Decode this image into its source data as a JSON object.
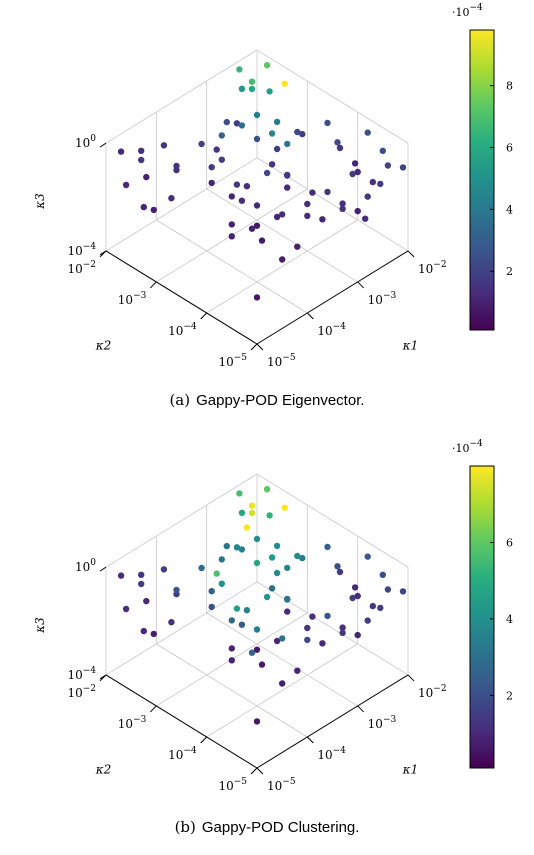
{
  "chart_data": [
    {
      "type": "scatter",
      "title": "",
      "caption_letter": "(a)",
      "caption_text": "Gappy-POD Eigenvector.",
      "xlabel": "κ1",
      "ylabel": "κ2",
      "zlabel": "κ3",
      "x_axis_ticks": [
        {
          "base": "10",
          "exp": "−5"
        },
        {
          "base": "10",
          "exp": "−4"
        },
        {
          "base": "10",
          "exp": "−3"
        },
        {
          "base": "10",
          "exp": "−2"
        }
      ],
      "y_axis_ticks": [
        {
          "base": "10",
          "exp": "−5"
        },
        {
          "base": "10",
          "exp": "−4"
        },
        {
          "base": "10",
          "exp": "−3"
        },
        {
          "base": "10",
          "exp": "−2"
        }
      ],
      "z_axis_ticks": [
        {
          "base": "10",
          "exp": "−4"
        },
        {
          "base": "10",
          "exp": "0"
        }
      ],
      "log_scale": true,
      "grid": true,
      "colormap": "viridis",
      "colorbar": {
        "multiplier": {
          "base": "·10",
          "exp": "−4"
        },
        "range": [
          0.1,
          9.8
        ],
        "ticks": [
          "2",
          "4",
          "6",
          "8"
        ]
      },
      "points": [
        [
          -2.3,
          -4.9,
          -0.6,
          2.1
        ],
        [
          -2.2,
          -4.7,
          -0.4,
          2.4
        ],
        [
          -2.5,
          -4.8,
          -1.1,
          1.5
        ],
        [
          -2.7,
          -4.6,
          -0.8,
          1.8
        ],
        [
          -2.4,
          -4.4,
          -1.3,
          1.2
        ],
        [
          -2.9,
          -4.9,
          -1.6,
          1.0
        ],
        [
          -2.1,
          -4.3,
          -0.3,
          2.6
        ],
        [
          -2.6,
          -4.2,
          -0.2,
          2.3
        ],
        [
          -2.8,
          -4.5,
          -1.9,
          1.3
        ],
        [
          -2.05,
          -4.95,
          -0.9,
          2.0
        ],
        [
          -2.35,
          -4.55,
          -2.1,
          1.7
        ],
        [
          -2.45,
          -4.1,
          -0.7,
          1.6
        ],
        [
          -2.2,
          -4.15,
          -1.5,
          1.1
        ],
        [
          -2.15,
          -4.6,
          -1.8,
          1.9
        ],
        [
          -2.6,
          -4.75,
          -2.4,
          1.4
        ],
        [
          -2.1,
          -2.3,
          -0.1,
          7.3
        ],
        [
          -2.05,
          -2.6,
          -0.5,
          9.8
        ],
        [
          -2.3,
          -2.2,
          -0.6,
          6.8
        ],
        [
          -2.2,
          -2.1,
          -1.1,
          5.9
        ],
        [
          -2.15,
          -2.4,
          -0.9,
          5.5
        ],
        [
          -2.4,
          -2.05,
          -0.2,
          6.5
        ],
        [
          -2.6,
          -2.3,
          -0.4,
          5.2
        ],
        [
          -2.5,
          -2.8,
          -1.6,
          4.6
        ],
        [
          -2.7,
          -2.7,
          -0.8,
          4.3
        ],
        [
          -2.8,
          -2.5,
          -1.3,
          3.6
        ],
        [
          -2.3,
          -2.9,
          -2.1,
          3.9
        ],
        [
          -2.9,
          -2.2,
          -1.9,
          3.1
        ],
        [
          -2.35,
          -2.75,
          -1.4,
          4.1
        ],
        [
          -3.6,
          -3.4,
          -1.6,
          1.3
        ],
        [
          -3.3,
          -3.6,
          -0.9,
          1.5
        ],
        [
          -3.9,
          -3.2,
          -0.5,
          1.9
        ],
        [
          -3.2,
          -3.8,
          -1.2,
          1.1
        ],
        [
          -3.5,
          -3.1,
          -2.0,
          1.6
        ],
        [
          -4.0,
          -3.5,
          -1.4,
          1.2
        ],
        [
          -3.4,
          -3.9,
          -2.3,
          1.4
        ],
        [
          -3.7,
          -2.9,
          -0.7,
          1.7
        ],
        [
          -3.1,
          -3.3,
          -1.8,
          2.2
        ],
        [
          -3.8,
          -3.7,
          -2.6,
          1.0
        ],
        [
          -3.0,
          -3.0,
          -1.0,
          2.5
        ],
        [
          -3.25,
          -2.85,
          -0.3,
          1.8
        ],
        [
          -4.1,
          -3.8,
          -1.1,
          1.3
        ],
        [
          -3.55,
          -3.55,
          -2.2,
          1.2
        ],
        [
          -4.6,
          -2.3,
          -0.4,
          1.4
        ],
        [
          -4.8,
          -2.6,
          -0.8,
          1.0
        ],
        [
          -4.4,
          -2.1,
          -1.2,
          1.6
        ],
        [
          -4.9,
          -2.2,
          -0.2,
          1.2
        ],
        [
          -4.5,
          -2.8,
          -1.7,
          1.3
        ],
        [
          -4.7,
          -2.45,
          -2.2,
          1.1
        ],
        [
          -4.3,
          -2.7,
          -1.0,
          1.5
        ],
        [
          -4.95,
          -2.9,
          -1.5,
          0.9
        ],
        [
          -4.2,
          -2.35,
          -0.6,
          1.7
        ],
        [
          -4.65,
          -2.05,
          -1.9,
          1.2
        ],
        [
          -4.5,
          -4.6,
          -1.2,
          0.8
        ],
        [
          -4.8,
          -4.3,
          -0.6,
          1.0
        ],
        [
          -4.3,
          -4.8,
          -1.9,
          0.9
        ],
        [
          -4.9,
          -4.9,
          -2.5,
          0.7
        ],
        [
          -4.1,
          -4.5,
          -0.9,
          1.1
        ],
        [
          -4.6,
          -4.1,
          -1.5,
          1.0
        ],
        [
          -4.7,
          -4.7,
          -0.3,
          0.8
        ],
        [
          -3.4,
          -4.5,
          -0.8,
          1.3
        ],
        [
          -3.1,
          -4.8,
          -1.4,
          1.5
        ],
        [
          -3.7,
          -4.3,
          -0.5,
          1.2
        ],
        [
          -3.9,
          -4.7,
          -2.0,
          1.0
        ],
        [
          -3.2,
          -4.2,
          -1.8,
          1.4
        ],
        [
          -3.6,
          -4.9,
          -1.1,
          1.1
        ],
        [
          -2.6,
          -3.5,
          -0.7,
          1.9
        ],
        [
          -2.4,
          -3.2,
          -1.2,
          2.2
        ],
        [
          -2.8,
          -3.4,
          -2.1,
          1.7
        ],
        [
          -2.3,
          -3.7,
          -0.4,
          2.4
        ],
        [
          -2.7,
          -3.1,
          -1.6,
          1.8
        ],
        [
          -2.5,
          -3.9,
          -2.5,
          1.6
        ],
        [
          -3.5,
          -2.4,
          -1.3,
          2.0
        ],
        [
          -3.2,
          -2.6,
          -0.6,
          2.3
        ],
        [
          -3.8,
          -2.2,
          -2.0,
          1.5
        ],
        [
          -3.6,
          -2.7,
          -1.7,
          1.8
        ],
        [
          -4.2,
          -3.3,
          -0.9,
          1.1
        ],
        [
          -3.0,
          -4.0,
          -2.7,
          1.3
        ]
      ]
    },
    {
      "type": "scatter",
      "title": "",
      "caption_letter": "(b)",
      "caption_text": "Gappy-POD Clustering.",
      "xlabel": "κ1",
      "ylabel": "κ2",
      "zlabel": "κ3",
      "x_axis_ticks": [
        {
          "base": "10",
          "exp": "−5"
        },
        {
          "base": "10",
          "exp": "−4"
        },
        {
          "base": "10",
          "exp": "−3"
        },
        {
          "base": "10",
          "exp": "−2"
        }
      ],
      "y_axis_ticks": [
        {
          "base": "10",
          "exp": "−5"
        },
        {
          "base": "10",
          "exp": "−4"
        },
        {
          "base": "10",
          "exp": "−3"
        },
        {
          "base": "10",
          "exp": "−2"
        }
      ],
      "z_axis_ticks": [
        {
          "base": "10",
          "exp": "−4"
        },
        {
          "base": "10",
          "exp": "0"
        }
      ],
      "log_scale": true,
      "grid": true,
      "colormap": "viridis",
      "colorbar": {
        "multiplier": {
          "base": "·10",
          "exp": "−4"
        },
        "range": [
          0.1,
          8.0
        ],
        "ticks": [
          "2",
          "4",
          "6"
        ]
      },
      "points": [
        [
          -2.3,
          -4.9,
          -0.6,
          1.8
        ],
        [
          -2.2,
          -4.7,
          -0.4,
          2.0
        ],
        [
          -2.5,
          -4.8,
          -1.1,
          1.3
        ],
        [
          -2.7,
          -4.6,
          -0.8,
          1.6
        ],
        [
          -2.4,
          -4.4,
          -1.3,
          1.1
        ],
        [
          -2.9,
          -4.9,
          -1.6,
          0.9
        ],
        [
          -2.1,
          -4.3,
          -0.3,
          2.3
        ],
        [
          -2.6,
          -4.2,
          -0.2,
          2.0
        ],
        [
          -2.8,
          -4.5,
          -1.9,
          1.2
        ],
        [
          -2.05,
          -4.95,
          -0.9,
          1.7
        ],
        [
          -2.35,
          -4.55,
          -2.1,
          1.5
        ],
        [
          -2.45,
          -4.1,
          -0.7,
          1.4
        ],
        [
          -2.2,
          -4.15,
          -1.5,
          1.0
        ],
        [
          -2.15,
          -4.6,
          -1.8,
          1.6
        ],
        [
          -2.1,
          -2.3,
          -0.1,
          6.0
        ],
        [
          -2.05,
          -2.6,
          -0.5,
          8.0
        ],
        [
          -2.3,
          -2.2,
          -0.6,
          7.8
        ],
        [
          -2.2,
          -2.1,
          -1.1,
          7.5
        ],
        [
          -2.15,
          -2.4,
          -0.9,
          5.2
        ],
        [
          -2.4,
          -2.05,
          -0.2,
          5.6
        ],
        [
          -2.6,
          -2.3,
          -0.4,
          4.8
        ],
        [
          -2.5,
          -2.8,
          -1.6,
          4.4
        ],
        [
          -2.7,
          -2.7,
          -0.8,
          4.0
        ],
        [
          -2.8,
          -2.5,
          -1.3,
          3.5
        ],
        [
          -2.3,
          -2.9,
          -2.1,
          3.7
        ],
        [
          -2.9,
          -2.2,
          -1.9,
          3.2
        ],
        [
          -2.35,
          -2.75,
          -1.4,
          3.9
        ],
        [
          -2.55,
          -2.35,
          -0.95,
          7.9
        ],
        [
          -3.6,
          -3.4,
          -1.6,
          3.6
        ],
        [
          -3.3,
          -3.6,
          -0.9,
          3.0
        ],
        [
          -3.9,
          -3.2,
          -0.5,
          4.1
        ],
        [
          -3.2,
          -3.8,
          -1.2,
          3.3
        ],
        [
          -3.5,
          -3.1,
          -2.0,
          4.5
        ],
        [
          -4.0,
          -3.5,
          -1.4,
          2.8
        ],
        [
          -3.4,
          -3.9,
          -2.3,
          3.1
        ],
        [
          -3.7,
          -2.9,
          -0.7,
          5.7
        ],
        [
          -3.1,
          -3.3,
          -1.8,
          4.2
        ],
        [
          -3.8,
          -3.7,
          -2.6,
          2.6
        ],
        [
          -3.0,
          -3.0,
          -1.0,
          4.7
        ],
        [
          -3.25,
          -2.85,
          -0.3,
          3.8
        ],
        [
          -4.1,
          -3.8,
          -1.1,
          2.4
        ],
        [
          -3.55,
          -3.55,
          -2.2,
          3.4
        ],
        [
          -4.6,
          -2.3,
          -0.4,
          1.3
        ],
        [
          -4.8,
          -2.6,
          -0.8,
          1.0
        ],
        [
          -4.4,
          -2.1,
          -1.2,
          1.5
        ],
        [
          -4.9,
          -2.2,
          -0.2,
          1.1
        ],
        [
          -4.5,
          -2.8,
          -1.7,
          1.2
        ],
        [
          -4.7,
          -2.45,
          -2.2,
          1.0
        ],
        [
          -4.3,
          -2.7,
          -1.0,
          1.4
        ],
        [
          -4.95,
          -2.9,
          -1.5,
          0.8
        ],
        [
          -4.2,
          -2.35,
          -0.6,
          1.6
        ],
        [
          -4.65,
          -2.05,
          -1.9,
          1.1
        ],
        [
          -4.5,
          -4.6,
          -1.2,
          0.7
        ],
        [
          -4.8,
          -4.3,
          -0.6,
          0.9
        ],
        [
          -4.3,
          -4.8,
          -1.9,
          0.8
        ],
        [
          -4.9,
          -4.9,
          -2.5,
          0.6
        ],
        [
          -4.1,
          -4.5,
          -0.9,
          1.0
        ],
        [
          -4.6,
          -4.1,
          -1.5,
          0.9
        ],
        [
          -4.7,
          -4.7,
          -0.3,
          0.7
        ],
        [
          -3.4,
          -4.5,
          -0.8,
          1.2
        ],
        [
          -3.1,
          -4.8,
          -1.4,
          1.4
        ],
        [
          -3.7,
          -4.3,
          -0.5,
          1.1
        ],
        [
          -3.9,
          -4.7,
          -2.0,
          0.9
        ],
        [
          -3.2,
          -4.2,
          -1.8,
          1.3
        ],
        [
          -3.6,
          -4.9,
          -1.1,
          1.0
        ],
        [
          -2.6,
          -3.5,
          -0.7,
          3.4
        ],
        [
          -2.4,
          -3.2,
          -1.2,
          4.0
        ],
        [
          -2.8,
          -3.4,
          -2.1,
          3.1
        ],
        [
          -2.3,
          -3.7,
          -0.4,
          2.5
        ],
        [
          -2.7,
          -3.1,
          -1.6,
          3.7
        ],
        [
          -2.5,
          -3.9,
          -2.5,
          2.2
        ],
        [
          -3.5,
          -2.4,
          -1.3,
          2.9
        ],
        [
          -3.2,
          -2.6,
          -0.6,
          3.2
        ],
        [
          -3.8,
          -2.2,
          -2.0,
          2.1
        ],
        [
          -3.6,
          -2.7,
          -1.7,
          2.6
        ],
        [
          -4.2,
          -3.3,
          -0.9,
          2.0
        ],
        [
          -3.0,
          -4.0,
          -2.7,
          1.8
        ]
      ]
    }
  ]
}
